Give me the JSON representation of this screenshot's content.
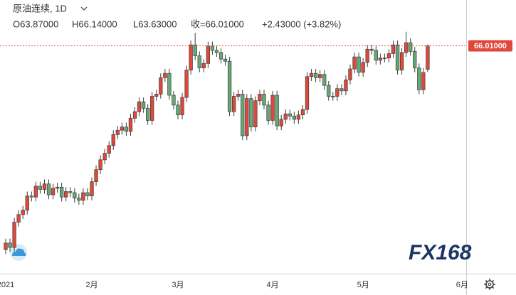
{
  "header": {
    "symbol": "原油连续, 1D",
    "open": "O63.87000",
    "high": "H66.14000",
    "low": "L63.63000",
    "close": "收=66.01000",
    "change": "+2.43000 (+3.82%)"
  },
  "watermark": "FX168",
  "chart_data": {
    "type": "candlestick",
    "categories": [
      "2021",
      null,
      null,
      null,
      null,
      null,
      null,
      null,
      null,
      null,
      null,
      null,
      null,
      null,
      null,
      null,
      null,
      null,
      null,
      null,
      "2月",
      null,
      null,
      null,
      null,
      null,
      null,
      null,
      null,
      null,
      null,
      null,
      null,
      null,
      null,
      null,
      null,
      null,
      null,
      null,
      "3月",
      null,
      null,
      null,
      null,
      null,
      null,
      null,
      null,
      null,
      null,
      null,
      null,
      null,
      null,
      null,
      null,
      null,
      null,
      null,
      null,
      null,
      "4月",
      null,
      null,
      null,
      null,
      null,
      null,
      null,
      null,
      null,
      null,
      null,
      null,
      null,
      null,
      null,
      null,
      null,
      null,
      null,
      null,
      "5月",
      null,
      null,
      null,
      null,
      null,
      null,
      null,
      null,
      null,
      null,
      null,
      null,
      null,
      null,
      null,
      null,
      null,
      null,
      null,
      null,
      null,
      null,
      "6月"
    ],
    "open": [
      47.4,
      48.0,
      47.6,
      49.9,
      50.6,
      51.0,
      52.3,
      52.2,
      53.2,
      52.9,
      53.4,
      52.4,
      53.0,
      53.1,
      52.2,
      52.7,
      52.6,
      52.1,
      51.9,
      52.6,
      52.3,
      53.6,
      54.7,
      55.6,
      56.2,
      56.9,
      57.9,
      58.3,
      58.6,
      58.2,
      59.4,
      60.0,
      60.9,
      60.3,
      59.2,
      61.4,
      61.6,
      63.1,
      63.5,
      61.5,
      60.6,
      59.7,
      61.3,
      63.8,
      66.1,
      65.1,
      64.0,
      64.4,
      66.0,
      65.6,
      65.4,
      64.8,
      64.6,
      60.0,
      61.4,
      61.6,
      57.8,
      61.2,
      58.6,
      61.0,
      61.6,
      60.6,
      59.2,
      61.5,
      58.7,
      59.3,
      59.8,
      59.6,
      59.3,
      59.7,
      60.2,
      63.2,
      63.5,
      63.1,
      63.4,
      62.4,
      61.4,
      61.4,
      62.1,
      61.9,
      62.9,
      63.9,
      65.0,
      63.6,
      64.5,
      65.7,
      65.6,
      64.7,
      64.9,
      64.9,
      65.3,
      66.1,
      63.8,
      65.4,
      66.3,
      65.5,
      64.0,
      62.0,
      63.87,
      null,
      null,
      null,
      null,
      null,
      null,
      null,
      null
    ],
    "high": [
      48.4,
      48.4,
      50.3,
      51.0,
      51.4,
      52.7,
      52.7,
      53.6,
      53.6,
      53.8,
      53.8,
      53.4,
      53.5,
      53.5,
      53.1,
      53.1,
      53.0,
      52.5,
      53.0,
      53.0,
      54.0,
      55.1,
      56.0,
      56.6,
      57.3,
      58.3,
      58.7,
      59.0,
      59.0,
      59.8,
      60.4,
      61.3,
      61.3,
      60.7,
      61.8,
      62.0,
      63.5,
      63.9,
      63.9,
      61.9,
      61.0,
      61.7,
      64.2,
      66.5,
      67.2,
      65.5,
      64.8,
      66.4,
      66.4,
      66.0,
      65.8,
      65.2,
      65.0,
      61.8,
      62.0,
      62.0,
      61.6,
      61.6,
      61.4,
      62.0,
      62.0,
      61.0,
      61.9,
      61.9,
      59.7,
      60.2,
      60.2,
      60.0,
      60.1,
      60.6,
      63.6,
      63.9,
      63.9,
      63.8,
      63.8,
      62.8,
      61.8,
      62.5,
      62.5,
      63.3,
      64.3,
      65.4,
      65.4,
      64.9,
      66.1,
      66.1,
      66.0,
      65.3,
      65.3,
      65.7,
      66.5,
      66.5,
      65.8,
      67.3,
      66.7,
      65.9,
      64.4,
      64.0,
      66.14,
      null,
      null,
      null,
      null,
      null,
      null,
      null,
      null
    ],
    "low": [
      47.0,
      47.2,
      47.2,
      49.5,
      50.2,
      50.6,
      51.8,
      51.8,
      52.5,
      52.5,
      52.0,
      52.0,
      52.6,
      51.8,
      51.8,
      52.2,
      51.7,
      51.5,
      51.5,
      51.9,
      51.9,
      53.2,
      54.3,
      55.2,
      55.8,
      56.5,
      57.5,
      57.9,
      57.8,
      57.8,
      59.0,
      59.6,
      59.9,
      58.8,
      58.8,
      61.0,
      61.2,
      62.7,
      61.1,
      60.2,
      59.3,
      59.3,
      60.9,
      63.4,
      64.7,
      63.6,
      63.6,
      64.0,
      65.2,
      65.0,
      64.4,
      64.2,
      59.6,
      59.6,
      61.0,
      57.4,
      57.4,
      58.2,
      58.2,
      60.6,
      60.2,
      58.8,
      58.8,
      58.3,
      58.3,
      58.9,
      59.2,
      58.9,
      58.9,
      59.3,
      59.8,
      62.8,
      62.7,
      62.7,
      62.0,
      61.0,
      61.0,
      61.0,
      61.5,
      61.5,
      62.5,
      63.5,
      63.2,
      63.2,
      64.1,
      65.2,
      64.3,
      64.3,
      64.5,
      64.5,
      64.9,
      63.4,
      63.4,
      65.0,
      65.1,
      63.6,
      61.6,
      61.6,
      63.63,
      null,
      null,
      null,
      null,
      null,
      null,
      null,
      null
    ],
    "close": [
      48.0,
      47.6,
      49.9,
      50.6,
      51.0,
      52.3,
      52.2,
      53.2,
      52.9,
      53.4,
      52.4,
      53.0,
      53.1,
      52.2,
      52.7,
      52.6,
      52.1,
      51.9,
      52.6,
      52.3,
      53.6,
      54.7,
      55.6,
      56.2,
      56.9,
      57.9,
      58.3,
      58.6,
      58.2,
      59.4,
      60.0,
      60.9,
      60.3,
      59.2,
      61.4,
      61.6,
      63.1,
      63.5,
      61.5,
      60.6,
      59.7,
      61.3,
      63.8,
      66.1,
      65.1,
      64.0,
      64.4,
      66.0,
      65.6,
      65.4,
      64.8,
      64.6,
      60.0,
      61.4,
      61.6,
      57.8,
      61.2,
      58.6,
      61.0,
      61.6,
      60.6,
      59.2,
      61.5,
      58.7,
      59.3,
      59.8,
      59.6,
      59.3,
      59.7,
      60.2,
      63.2,
      63.5,
      63.1,
      63.4,
      62.4,
      61.4,
      61.4,
      62.1,
      61.9,
      62.9,
      63.9,
      65.0,
      63.6,
      64.5,
      65.7,
      65.6,
      64.7,
      64.9,
      64.9,
      65.3,
      66.1,
      63.8,
      65.4,
      66.3,
      65.5,
      64.0,
      62.0,
      63.58,
      66.01,
      null,
      null,
      null,
      null,
      null,
      null,
      null,
      null
    ],
    "up_color": "#e0483c",
    "down_color": "#66a876",
    "ylim": [
      45.2,
      70.2
    ],
    "last_price": {
      "value": 66.01,
      "label": "66.01000"
    },
    "last_price_color": "#e0483c"
  }
}
